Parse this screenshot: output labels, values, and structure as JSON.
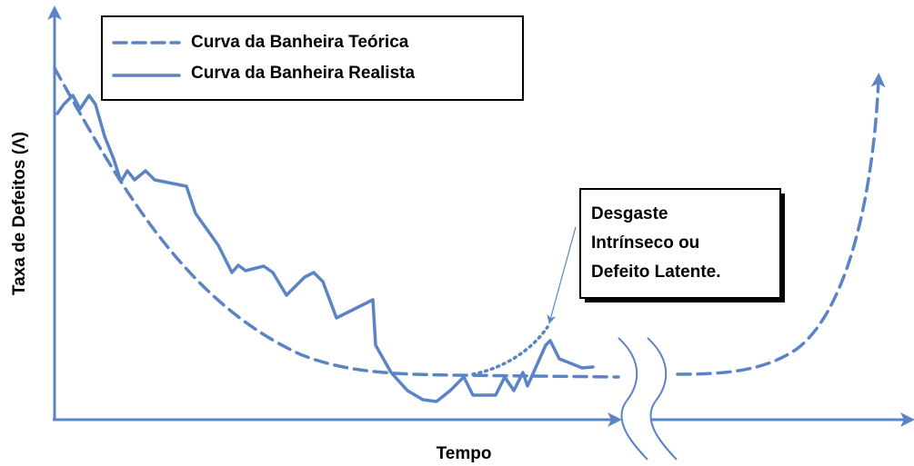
{
  "legend": {
    "items": [
      {
        "label": "Curva da Banheira Teórica"
      },
      {
        "label": "Curva da Banheira Realista"
      }
    ]
  },
  "axes": {
    "y_label": "Taxa de Defeitos (Λ)",
    "x_label": "Tempo"
  },
  "annotation": {
    "lines": [
      "Desgaste",
      "Intrínseco ou",
      "Defeito Latente."
    ]
  }
}
